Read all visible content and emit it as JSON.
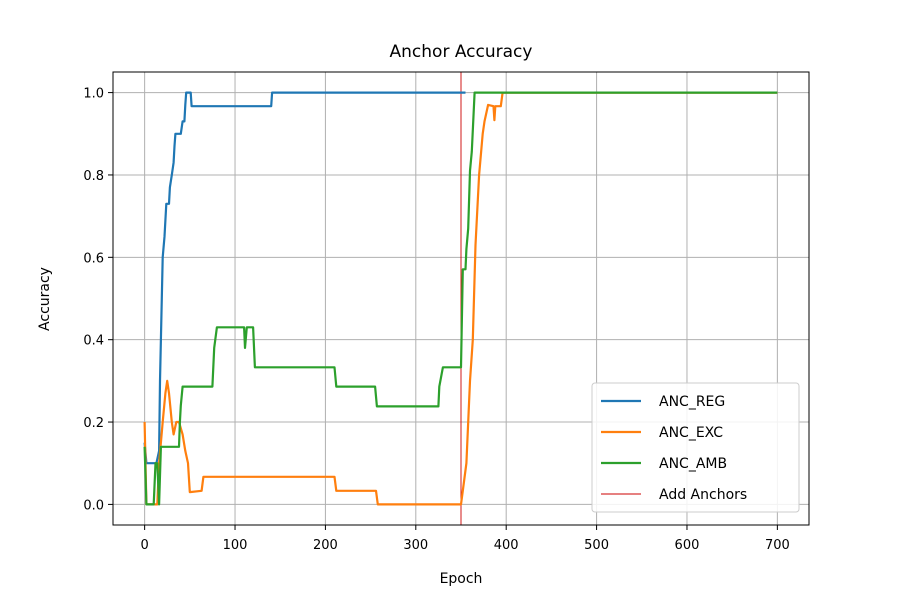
{
  "chart_data": {
    "type": "line",
    "title": "Anchor Accuracy",
    "xlabel": "Epoch",
    "ylabel": "Accuracy",
    "xlim": [
      -35,
      735
    ],
    "ylim": [
      -0.05,
      1.05
    ],
    "xticks": [
      0,
      100,
      200,
      300,
      400,
      500,
      600,
      700
    ],
    "yticks": [
      0.0,
      0.2,
      0.4,
      0.6,
      0.8,
      1.0
    ],
    "xtick_labels": [
      "0",
      "100",
      "200",
      "300",
      "400",
      "500",
      "600",
      "700"
    ],
    "ytick_labels": [
      "0.0",
      "0.2",
      "0.4",
      "0.6",
      "0.8",
      "1.0"
    ],
    "grid": true,
    "legend_position": "lower-right",
    "series": [
      {
        "name": "ANC_REG",
        "color": "#1f77b4",
        "points": [
          [
            0,
            0.15
          ],
          [
            2,
            0.1
          ],
          [
            10,
            0.1
          ],
          [
            13,
            0.1
          ],
          [
            16,
            0.13
          ],
          [
            17,
            0.3
          ],
          [
            18,
            0.4
          ],
          [
            19,
            0.5
          ],
          [
            20,
            0.6
          ],
          [
            22,
            0.65
          ],
          [
            24,
            0.73
          ],
          [
            27,
            0.73
          ],
          [
            28,
            0.77
          ],
          [
            30,
            0.8
          ],
          [
            32,
            0.83
          ],
          [
            33,
            0.87
          ],
          [
            34,
            0.9
          ],
          [
            40,
            0.9
          ],
          [
            42,
            0.93
          ],
          [
            44,
            0.93
          ],
          [
            45,
            0.97
          ],
          [
            46,
            1.0
          ],
          [
            51,
            1.0
          ],
          [
            52,
            0.967
          ],
          [
            140,
            0.967
          ],
          [
            141,
            1.0
          ],
          [
            355,
            1.0
          ]
        ]
      },
      {
        "name": "ANC_EXC",
        "color": "#ff7f0e",
        "points": [
          [
            0,
            0.2
          ],
          [
            2,
            0.0
          ],
          [
            12,
            0.0
          ],
          [
            14,
            0.0
          ],
          [
            16,
            0.1
          ],
          [
            20,
            0.2
          ],
          [
            23,
            0.27
          ],
          [
            25,
            0.3
          ],
          [
            27,
            0.27
          ],
          [
            30,
            0.2
          ],
          [
            32,
            0.17
          ],
          [
            35,
            0.2
          ],
          [
            38,
            0.2
          ],
          [
            42,
            0.17
          ],
          [
            45,
            0.13
          ],
          [
            48,
            0.1
          ],
          [
            50,
            0.03
          ],
          [
            63,
            0.033
          ],
          [
            65,
            0.067
          ],
          [
            210,
            0.067
          ],
          [
            212,
            0.033
          ],
          [
            256,
            0.033
          ],
          [
            258,
            0.0
          ],
          [
            350,
            0.0
          ],
          [
            352,
            0.033
          ],
          [
            356,
            0.1
          ],
          [
            360,
            0.3
          ],
          [
            363,
            0.4
          ],
          [
            366,
            0.63
          ],
          [
            370,
            0.8
          ],
          [
            374,
            0.9
          ],
          [
            376,
            0.93
          ],
          [
            380,
            0.97
          ],
          [
            386,
            0.967
          ],
          [
            387,
            0.933
          ],
          [
            388,
            0.967
          ],
          [
            394,
            0.967
          ],
          [
            396,
            1.0
          ],
          [
            700,
            1.0
          ]
        ]
      },
      {
        "name": "ANC_AMB",
        "color": "#2ca02c",
        "points": [
          [
            0,
            0.14
          ],
          [
            2,
            0.0
          ],
          [
            10,
            0.0
          ],
          [
            12,
            0.1
          ],
          [
            14,
            0.1
          ],
          [
            16,
            0.0
          ],
          [
            18,
            0.14
          ],
          [
            38,
            0.14
          ],
          [
            39,
            0.2
          ],
          [
            40,
            0.24
          ],
          [
            42,
            0.286
          ],
          [
            75,
            0.286
          ],
          [
            77,
            0.38
          ],
          [
            80,
            0.43
          ],
          [
            110,
            0.43
          ],
          [
            111,
            0.38
          ],
          [
            113,
            0.43
          ],
          [
            120,
            0.43
          ],
          [
            122,
            0.333
          ],
          [
            210,
            0.333
          ],
          [
            212,
            0.286
          ],
          [
            255,
            0.286
          ],
          [
            257,
            0.238
          ],
          [
            325,
            0.238
          ],
          [
            326,
            0.286
          ],
          [
            330,
            0.333
          ],
          [
            350,
            0.333
          ],
          [
            352,
            0.571
          ],
          [
            355,
            0.571
          ],
          [
            356,
            0.62
          ],
          [
            358,
            0.67
          ],
          [
            360,
            0.81
          ],
          [
            362,
            0.857
          ],
          [
            365,
            1.0
          ],
          [
            700,
            1.0
          ]
        ]
      }
    ],
    "vlines": [
      {
        "name": "Add Anchors",
        "x": 350,
        "color": "#cc0000"
      }
    ]
  }
}
